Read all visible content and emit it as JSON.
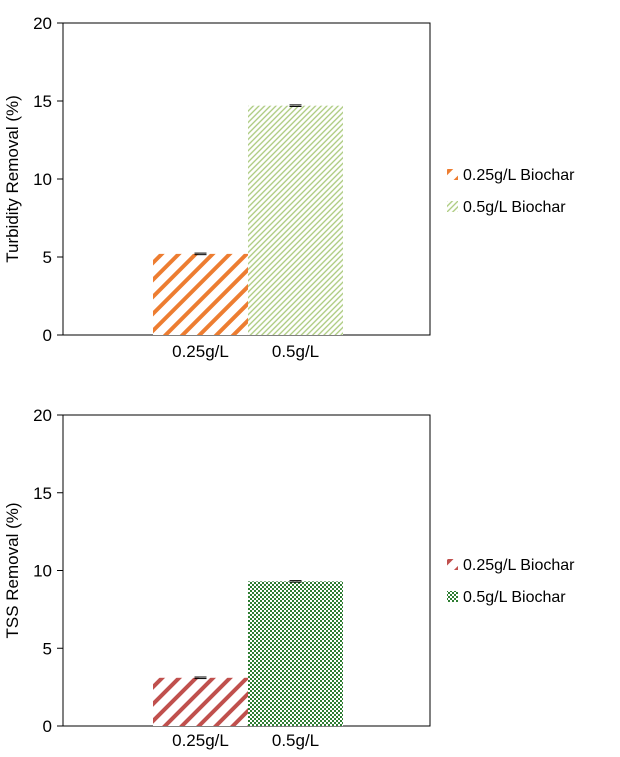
{
  "chart_data": [
    {
      "type": "bar",
      "categories": [
        "0.25g/L",
        "0.5g/L"
      ],
      "values": [
        5.2,
        14.7
      ],
      "error": [
        0.05,
        0.05
      ],
      "ylabel": "Turbidity Removal (%)",
      "ylim": [
        0,
        20
      ],
      "yticks": [
        0,
        5,
        10,
        15,
        20
      ],
      "grid": false,
      "legend_position": "right",
      "series": [
        {
          "name": "0.25g/L Biochar",
          "color": "#ED7D31",
          "pattern": "diagonal-stripes-wide"
        },
        {
          "name": "0.5g/L Biochar",
          "color": "#A9C97A",
          "pattern": "diagonal-stripes-fine"
        }
      ]
    },
    {
      "type": "bar",
      "categories": [
        "0.25g/L",
        "0.5g/L"
      ],
      "values": [
        3.1,
        9.3
      ],
      "error": [
        0.05,
        0.05
      ],
      "ylabel": "TSS Removal (%)",
      "ylim": [
        0,
        20
      ],
      "yticks": [
        0,
        5,
        10,
        15,
        20
      ],
      "grid": false,
      "legend_position": "right",
      "series": [
        {
          "name": "0.25g/L Biochar",
          "color": "#C0504D",
          "pattern": "diagonal-stripes-wide"
        },
        {
          "name": "0.5g/L Biochar",
          "color": "#2E7D32",
          "pattern": "checker"
        }
      ]
    }
  ]
}
